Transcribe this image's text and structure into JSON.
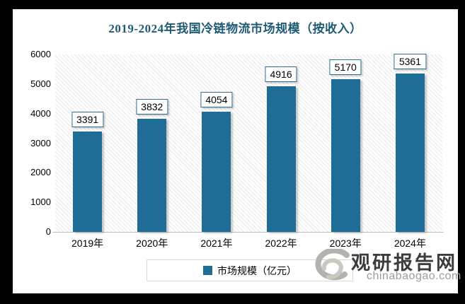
{
  "chart_data": {
    "type": "bar",
    "title": "2019-2024年我国冷链物流市场规模（按收入）",
    "categories": [
      "2019年",
      "2020年",
      "2021年",
      "2022年",
      "2023年",
      "2024年"
    ],
    "values": [
      3391,
      3832,
      4054,
      4916,
      5170,
      5361
    ],
    "series_name": "市场规模（亿元）",
    "xlabel": "",
    "ylabel": "",
    "ylim": [
      0,
      6000
    ],
    "yticks": [
      0,
      1000,
      2000,
      3000,
      4000,
      5000,
      6000
    ],
    "grid": false,
    "legend_position": "bottom",
    "bar_color": "#1F6D96",
    "data_labels_boxed": true
  },
  "legend": {
    "label": "市场规模（亿元）"
  },
  "watermark": {
    "name": "观研报告网",
    "url": "chinabaogao.com",
    "logo_icon": "swirl-logo"
  },
  "colors": {
    "title": "#1E5A74",
    "bar": "#1F6D96",
    "label_box_border": "#2E6E8E",
    "axis_line": "#BFBFBF",
    "watermark_name": "#3C3C3C",
    "watermark_url": "#9C9C9C"
  }
}
